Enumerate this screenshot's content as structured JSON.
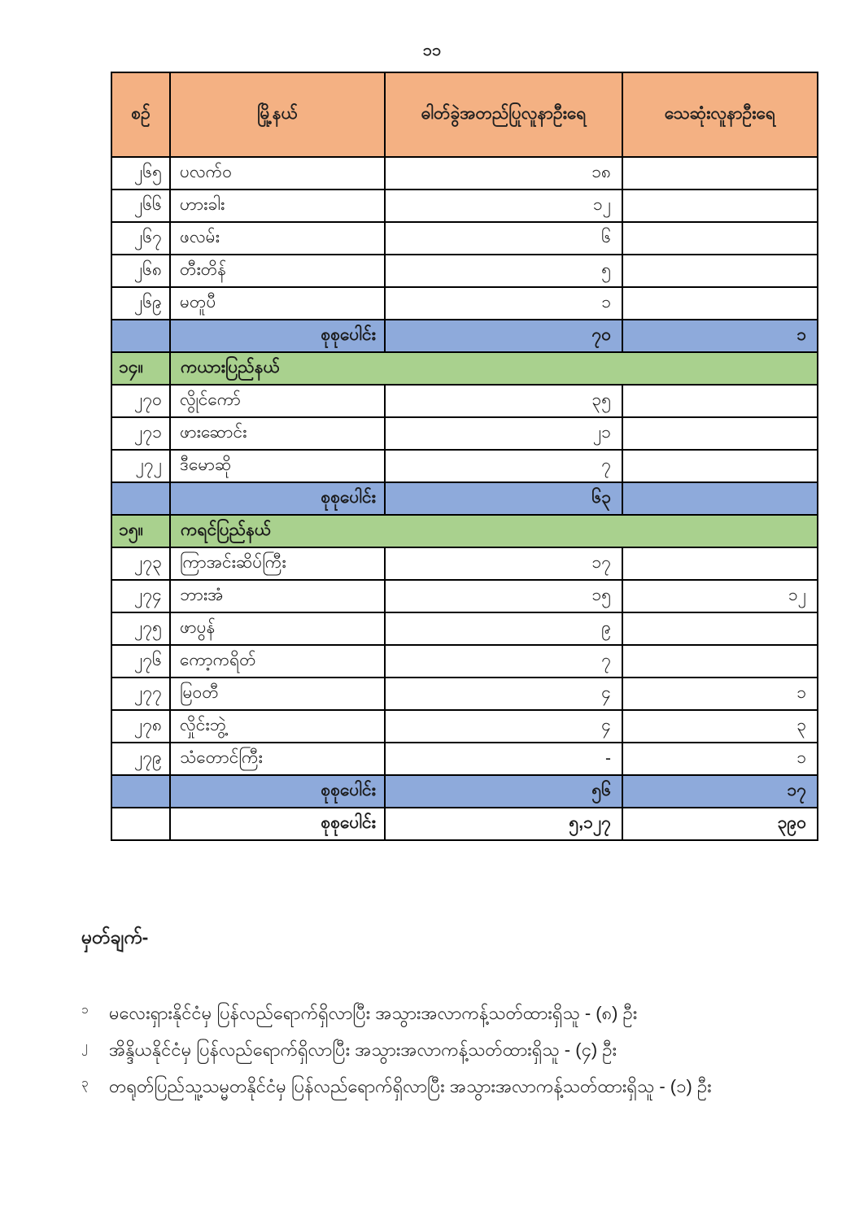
{
  "page_number": "၁၁",
  "colors": {
    "header_bg": "#F4B183",
    "section_bg": "#A9D18E",
    "total_bg": "#8EAADB",
    "border": "#000000",
    "page_bg": "#FFFFFF"
  },
  "table": {
    "headers": {
      "no": "စဉ်",
      "township": "မြို့နယ်",
      "confirmed": "ဓါတ်ခွဲအတည်ပြုလူနာဦးရေ",
      "deaths": "သေဆုံးလူနာဦးရေ"
    },
    "rows": [
      {
        "type": "data",
        "no": "၂၆၅",
        "township": "ပလက်ဝ",
        "confirmed": "၁၈",
        "deaths": ""
      },
      {
        "type": "data",
        "no": "၂၆၆",
        "township": "ဟားခါး",
        "confirmed": "၁၂",
        "deaths": ""
      },
      {
        "type": "data",
        "no": "၂၆၇",
        "township": "ဖလမ်း",
        "confirmed": "၆",
        "deaths": ""
      },
      {
        "type": "data",
        "no": "၂၆၈",
        "township": "တီးတိန်",
        "confirmed": "၅",
        "deaths": ""
      },
      {
        "type": "data",
        "no": "၂၆၉",
        "township": "မတူပီ",
        "confirmed": "၁",
        "deaths": ""
      },
      {
        "type": "total",
        "label": "စုစုပေါင်း",
        "confirmed": "၇၀",
        "deaths": "၁"
      },
      {
        "type": "section",
        "no": "၁၄။",
        "name": "ကယားပြည်နယ်"
      },
      {
        "type": "data",
        "no": "၂၇၀",
        "township": "လွိုင်ကော်",
        "confirmed": "၃၅",
        "deaths": ""
      },
      {
        "type": "data",
        "no": "၂၇၁",
        "township": "ဖားဆောင်း",
        "confirmed": "၂၁",
        "deaths": ""
      },
      {
        "type": "data",
        "no": "၂၇၂",
        "township": "ဒီမောဆို",
        "confirmed": "၇",
        "deaths": ""
      },
      {
        "type": "total",
        "label": "စုစုပေါင်း",
        "confirmed": "၆၃",
        "deaths": ""
      },
      {
        "type": "section",
        "no": "၁၅။",
        "name": "ကရင်ပြည်နယ်"
      },
      {
        "type": "data",
        "no": "၂၇၃",
        "township": "ကြာအင်းဆိပ်ကြီး",
        "confirmed": "၁၇",
        "deaths": ""
      },
      {
        "type": "data",
        "no": "၂၇၄",
        "township": "ဘားအံ",
        "confirmed": "၁၅",
        "deaths": "၁၂"
      },
      {
        "type": "data",
        "no": "၂၇၅",
        "township": "ဖာပွန်",
        "confirmed": "၉",
        "deaths": ""
      },
      {
        "type": "data",
        "no": "၂၇၆",
        "township": "ကော့ကရိတ်",
        "confirmed": "၇",
        "deaths": ""
      },
      {
        "type": "data",
        "no": "၂၇၇",
        "township": "မြဝတီ",
        "confirmed": "၄",
        "deaths": "၁"
      },
      {
        "type": "data",
        "no": "၂၇၈",
        "township": "လှိုင်းဘွဲ့",
        "confirmed": "၄",
        "deaths": "၃"
      },
      {
        "type": "data",
        "no": "၂၇၉",
        "township": "သံတောင်ကြီး",
        "confirmed": "-",
        "deaths": "၁"
      },
      {
        "type": "total",
        "label": "စုစုပေါင်း",
        "confirmed": "၅၆",
        "deaths": "၁၇"
      },
      {
        "type": "grand_total",
        "label": "စုစုပေါင်း",
        "confirmed": "၅,၁၂၇",
        "deaths": "၃၉၀"
      }
    ]
  },
  "notes": {
    "heading": "မှတ်ချက်-",
    "items": [
      {
        "marker": "၁",
        "text": "မလေးရှားနိုင်ငံမှ ပြန်လည်ရောက်ရှိလာပြီး အသွားအလာကန့်သတ်ထားရှိသူ - (၈) ဦး"
      },
      {
        "marker": "၂",
        "text": "အိန္ဒိယနိုင်ငံမှ ပြန်လည်ရောက်ရှိလာပြီး အသွားအလာကန့်သတ်ထားရှိသူ - (၄) ဦး"
      },
      {
        "marker": "၃",
        "text": "တရုတ်ပြည်သူ့သမ္မတနိုင်ငံမှ ပြန်လည်ရောက်ရှိလာပြီး အသွားအလာကန့်သတ်ထားရှိသူ - (၁) ဦး"
      }
    ]
  }
}
